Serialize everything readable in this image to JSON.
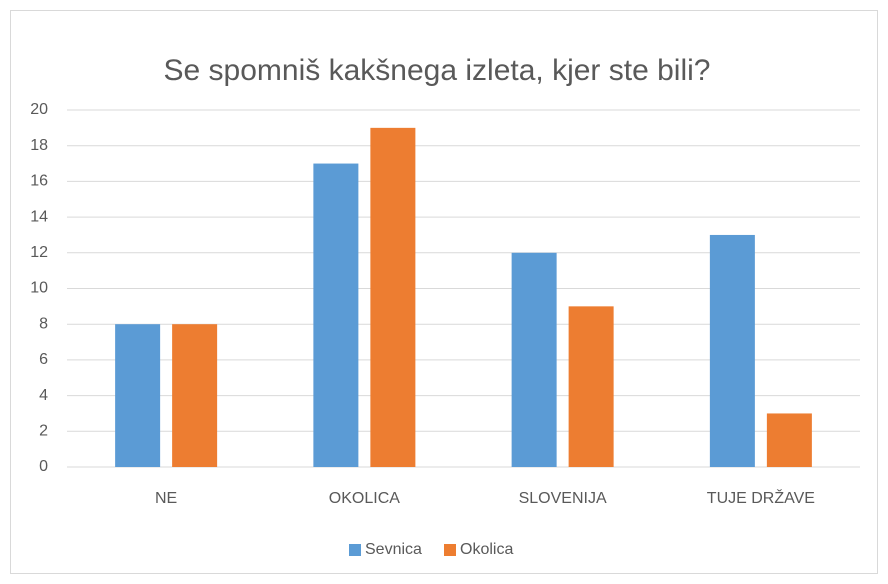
{
  "chart_data": {
    "type": "bar",
    "title": "Se spomniš kakšnega izleta, kjer ste bili?",
    "categories": [
      "NE",
      "OKOLICA",
      "SLOVENIJA",
      "TUJE DRŽAVE"
    ],
    "series": [
      {
        "name": "Sevnica",
        "color": "#5b9bd5",
        "values": [
          8,
          17,
          12,
          13
        ]
      },
      {
        "name": "Okolica",
        "color": "#ed7d31",
        "values": [
          8,
          19,
          9,
          3
        ]
      }
    ],
    "ylim": [
      0,
      20
    ],
    "yticks": [
      0,
      2,
      4,
      6,
      8,
      10,
      12,
      14,
      16,
      18,
      20
    ],
    "grid": true,
    "legend": "bottom"
  }
}
